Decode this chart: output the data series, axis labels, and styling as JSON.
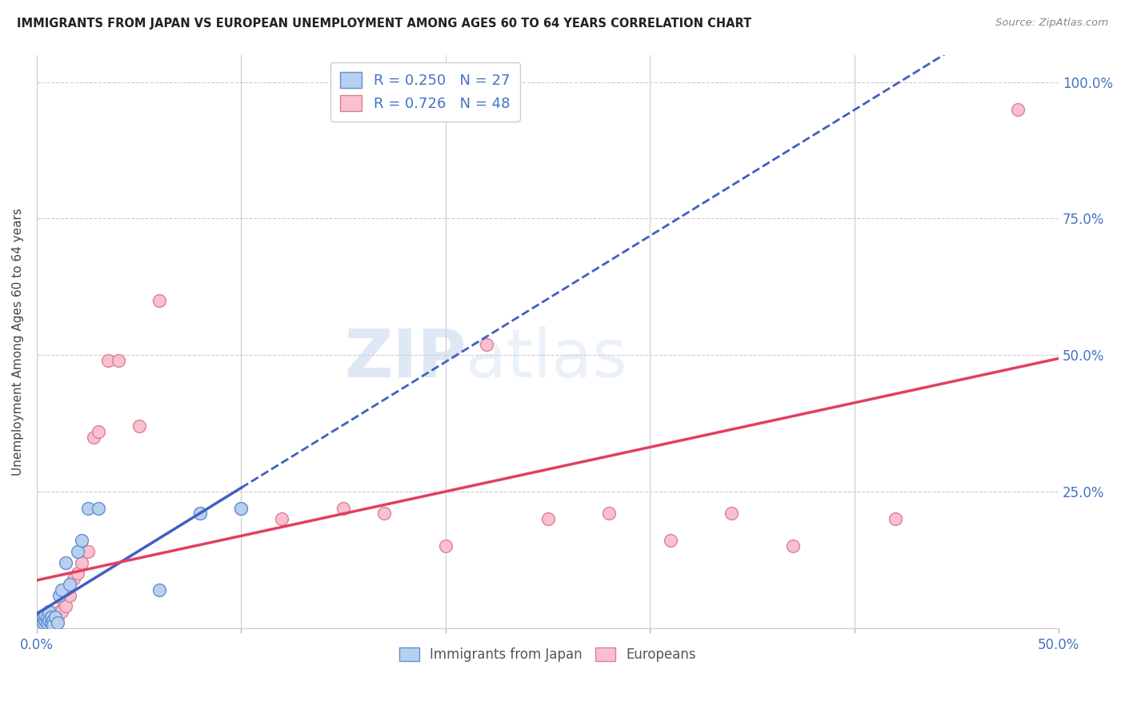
{
  "title": "IMMIGRANTS FROM JAPAN VS EUROPEAN UNEMPLOYMENT AMONG AGES 60 TO 64 YEARS CORRELATION CHART",
  "source": "Source: ZipAtlas.com",
  "ylabel": "Unemployment Among Ages 60 to 64 years",
  "xlim": [
    0.0,
    0.5
  ],
  "ylim": [
    0.0,
    1.05
  ],
  "xticks": [
    0.0,
    0.1,
    0.2,
    0.3,
    0.4,
    0.5
  ],
  "xticklabels": [
    "0.0%",
    "",
    "",
    "",
    "",
    "50.0%"
  ],
  "ytick_positions": [
    0.0,
    0.25,
    0.5,
    0.75,
    1.0
  ],
  "ytick_labels": [
    "",
    "25.0%",
    "50.0%",
    "75.0%",
    "100.0%"
  ],
  "grid_color": "#cccccc",
  "watermark_zip": "ZIP",
  "watermark_atlas": "atlas",
  "japan_color": "#b8d0f0",
  "japan_edge_color": "#6090d0",
  "europe_color": "#f8c0d0",
  "europe_edge_color": "#e08090",
  "japan_line_color": "#4060c0",
  "europe_line_color": "#e04060",
  "R_japan": 0.25,
  "N_japan": 27,
  "R_europe": 0.726,
  "N_europe": 48,
  "japan_x": [
    0.001,
    0.002,
    0.003,
    0.003,
    0.004,
    0.004,
    0.005,
    0.005,
    0.006,
    0.006,
    0.007,
    0.007,
    0.008,
    0.008,
    0.009,
    0.01,
    0.011,
    0.012,
    0.014,
    0.016,
    0.02,
    0.022,
    0.025,
    0.03,
    0.06,
    0.08,
    0.1
  ],
  "japan_y": [
    0.01,
    0.005,
    0.01,
    0.02,
    0.015,
    0.025,
    0.01,
    0.02,
    0.015,
    0.03,
    0.01,
    0.02,
    0.015,
    0.005,
    0.02,
    0.01,
    0.06,
    0.07,
    0.12,
    0.08,
    0.14,
    0.16,
    0.22,
    0.22,
    0.07,
    0.21,
    0.22
  ],
  "europe_x": [
    0.001,
    0.001,
    0.002,
    0.002,
    0.003,
    0.003,
    0.004,
    0.004,
    0.005,
    0.005,
    0.006,
    0.006,
    0.007,
    0.007,
    0.008,
    0.008,
    0.009,
    0.01,
    0.011,
    0.012,
    0.013,
    0.014,
    0.015,
    0.016,
    0.018,
    0.02,
    0.022,
    0.025,
    0.028,
    0.03,
    0.035,
    0.04,
    0.05,
    0.06,
    0.08,
    0.1,
    0.12,
    0.15,
    0.17,
    0.2,
    0.22,
    0.25,
    0.28,
    0.31,
    0.34,
    0.37,
    0.42,
    0.48
  ],
  "europe_y": [
    0.01,
    0.02,
    0.005,
    0.015,
    0.01,
    0.02,
    0.015,
    0.01,
    0.02,
    0.005,
    0.01,
    0.015,
    0.02,
    0.01,
    0.005,
    0.025,
    0.015,
    0.02,
    0.03,
    0.03,
    0.05,
    0.04,
    0.07,
    0.06,
    0.09,
    0.1,
    0.12,
    0.14,
    0.35,
    0.36,
    0.49,
    0.49,
    0.37,
    0.6,
    0.21,
    0.22,
    0.2,
    0.22,
    0.21,
    0.15,
    0.52,
    0.2,
    0.21,
    0.16,
    0.21,
    0.15,
    0.2,
    0.95
  ]
}
